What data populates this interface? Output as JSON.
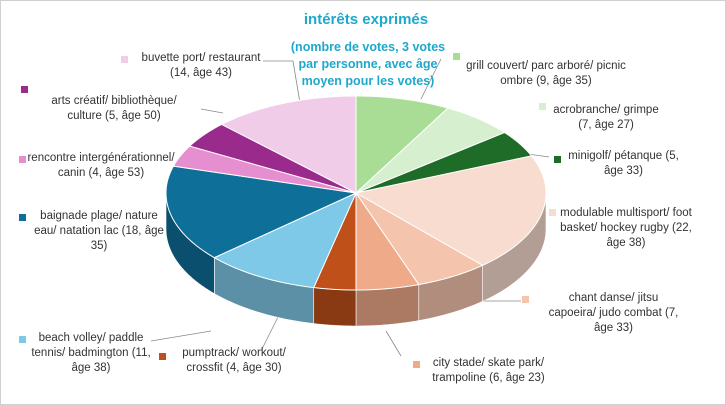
{
  "chart_data": {
    "type": "pie3d",
    "title": "intérêts exprimés",
    "subtitle": "(nombre de votes, 3 votes par personne, avec âge moyen pour les votes)",
    "categories": [
      "grill couvert/ parc arboré/ picnic ombre (9, âge 35)",
      "acrobranche/ grimpe (7, âge 27)",
      "minigolf/ pétanque (5, âge 33)",
      "modulable multisport/ foot basket/ hockey rugby (22, âge 38)",
      "chant danse/ jitsu capoeira/ judo combat (7, âge 33)",
      "city stade/ skate park/ trampoline (6, âge 23)",
      "pumptrack/ workout/ crossfit (4, âge 30)",
      "beach volley/ paddle tennis/ badmington (11, âge 38)",
      "baignade plage/ nature eau/ natation lac (18, âge 35)",
      "rencontre intergénérationnel/ canin (4, âge 53)",
      "arts créatif/ bibliothèque/ culture (5, âge 50)",
      "buvette port/ restaurant (14, âge 43)"
    ],
    "values": [
      9,
      7,
      5,
      22,
      7,
      6,
      4,
      11,
      18,
      4,
      5,
      14
    ],
    "colors": [
      "#a9dc95",
      "#d6efcf",
      "#1f6b28",
      "#f8dccf",
      "#f4c4ad",
      "#efaa8a",
      "#c0501a",
      "#7ec8e8",
      "#0e6f99",
      "#e58fd0",
      "#9a2a8c",
      "#f0cce9"
    ]
  }
}
